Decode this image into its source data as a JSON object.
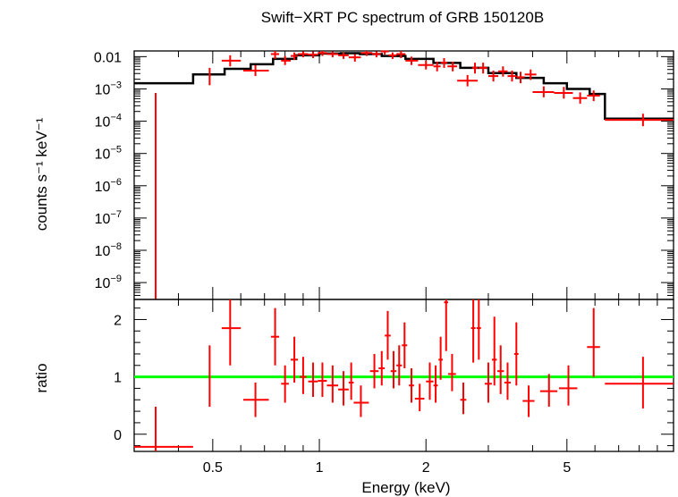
{
  "title": "Swift−XRT PC spectrum of GRB 150120B",
  "colors": {
    "data": "#ff0000",
    "model": "#000000",
    "unity": "#00ff00",
    "frame": "#000000"
  },
  "chart_data": [
    {
      "type": "scatter",
      "panel": "spectrum",
      "title": "Swift−XRT PC spectrum of GRB 150120B",
      "xlabel": "",
      "ylabel": "counts s⁻¹ keV⁻¹",
      "xscale": "log",
      "yscale": "log",
      "xlim": [
        0.3,
        10
      ],
      "ylim": [
        3e-10,
        0.015
      ],
      "yticks": [
        {
          "value": 0.01,
          "label": "0.01"
        },
        {
          "value": 0.001,
          "base": "10",
          "exp": "−3"
        },
        {
          "value": 0.0001,
          "base": "10",
          "exp": "−4"
        },
        {
          "value": 1e-05,
          "base": "10",
          "exp": "−5"
        },
        {
          "value": 1e-06,
          "base": "10",
          "exp": "−6"
        },
        {
          "value": 1e-07,
          "base": "10",
          "exp": "−7"
        },
        {
          "value": 1e-08,
          "base": "10",
          "exp": "−8"
        },
        {
          "value": 1e-09,
          "base": "10",
          "exp": "−9"
        }
      ],
      "series": [
        {
          "style": "crosses",
          "points": [
            {
              "x": 0.345,
              "xlo": 0.345,
              "xhi": 0.345,
              "y": 8e-10,
              "ylo": 3e-10,
              "yhi": 0.00075
            },
            {
              "x": 0.49,
              "xlo": 0.49,
              "xhi": 0.49,
              "y": 0.0025,
              "ylo": 0.0013,
              "yhi": 0.0045
            },
            {
              "x": 0.56,
              "xlo": 0.53,
              "xhi": 0.6,
              "y": 0.0075,
              "ylo": 0.005,
              "yhi": 0.011
            },
            {
              "x": 0.66,
              "xlo": 0.61,
              "xhi": 0.72,
              "y": 0.0037,
              "ylo": 0.0025,
              "yhi": 0.0055
            },
            {
              "x": 0.75,
              "xlo": 0.73,
              "xhi": 0.77,
              "y": 0.012,
              "ylo": 0.0085,
              "yhi": 0.015
            },
            {
              "x": 0.8,
              "xlo": 0.78,
              "xhi": 0.83,
              "y": 0.0075,
              "ylo": 0.0055,
              "yhi": 0.0105
            },
            {
              "x": 0.85,
              "xlo": 0.83,
              "xhi": 0.87,
              "y": 0.0105,
              "ylo": 0.008,
              "yhi": 0.0135
            },
            {
              "x": 0.9,
              "xlo": 0.87,
              "xhi": 0.93,
              "y": 0.012,
              "ylo": 0.0095,
              "yhi": 0.0145
            },
            {
              "x": 0.96,
              "xlo": 0.93,
              "xhi": 0.99,
              "y": 0.0115,
              "ylo": 0.009,
              "yhi": 0.0145
            },
            {
              "x": 1.02,
              "xlo": 0.99,
              "xhi": 1.05,
              "y": 0.013,
              "ylo": 0.0105,
              "yhi": 0.0155
            },
            {
              "x": 1.09,
              "xlo": 1.05,
              "xhi": 1.13,
              "y": 0.012,
              "ylo": 0.0095,
              "yhi": 0.0145
            },
            {
              "x": 1.17,
              "xlo": 1.13,
              "xhi": 1.21,
              "y": 0.011,
              "ylo": 0.0085,
              "yhi": 0.0135
            },
            {
              "x": 1.26,
              "xlo": 1.21,
              "xhi": 1.31,
              "y": 0.0095,
              "ylo": 0.007,
              "yhi": 0.012
            },
            {
              "x": 1.36,
              "xlo": 1.31,
              "xhi": 1.41,
              "y": 0.013,
              "ylo": 0.0105,
              "yhi": 0.0155
            },
            {
              "x": 1.45,
              "xlo": 1.41,
              "xhi": 1.49,
              "y": 0.012,
              "ylo": 0.0095,
              "yhi": 0.0145
            },
            {
              "x": 1.53,
              "xlo": 1.49,
              "xhi": 1.57,
              "y": 0.0145,
              "ylo": 0.0115,
              "yhi": 0.0155
            },
            {
              "x": 1.61,
              "xlo": 1.57,
              "xhi": 1.65,
              "y": 0.011,
              "ylo": 0.0085,
              "yhi": 0.0135
            },
            {
              "x": 1.7,
              "xlo": 1.65,
              "xhi": 1.75,
              "y": 0.012,
              "ylo": 0.009,
              "yhi": 0.015
            },
            {
              "x": 1.82,
              "xlo": 1.75,
              "xhi": 1.9,
              "y": 0.0075,
              "ylo": 0.0055,
              "yhi": 0.01
            },
            {
              "x": 2.0,
              "xlo": 1.9,
              "xhi": 2.1,
              "y": 0.0055,
              "ylo": 0.004,
              "yhi": 0.0075
            },
            {
              "x": 2.15,
              "xlo": 2.1,
              "xhi": 2.2,
              "y": 0.005,
              "ylo": 0.0035,
              "yhi": 0.007
            },
            {
              "x": 2.25,
              "xlo": 2.2,
              "xhi": 2.3,
              "y": 0.0065,
              "ylo": 0.0045,
              "yhi": 0.009
            },
            {
              "x": 2.38,
              "xlo": 2.3,
              "xhi": 2.45,
              "y": 0.005,
              "ylo": 0.0035,
              "yhi": 0.007
            },
            {
              "x": 2.62,
              "xlo": 2.45,
              "xhi": 2.8,
              "y": 0.0018,
              "ylo": 0.0012,
              "yhi": 0.0027
            },
            {
              "x": 2.75,
              "xlo": 2.7,
              "xhi": 2.8,
              "y": 0.0045,
              "ylo": 0.003,
              "yhi": 0.0065
            },
            {
              "x": 2.9,
              "xlo": 2.82,
              "xhi": 2.98,
              "y": 0.0045,
              "ylo": 0.003,
              "yhi": 0.0065
            },
            {
              "x": 3.1,
              "xlo": 3.0,
              "xhi": 3.2,
              "y": 0.0025,
              "ylo": 0.0017,
              "yhi": 0.0037
            },
            {
              "x": 3.3,
              "xlo": 3.2,
              "xhi": 3.4,
              "y": 0.0035,
              "ylo": 0.0024,
              "yhi": 0.005
            },
            {
              "x": 3.5,
              "xlo": 3.4,
              "xhi": 3.6,
              "y": 0.0025,
              "ylo": 0.0017,
              "yhi": 0.0037
            },
            {
              "x": 3.7,
              "xlo": 3.6,
              "xhi": 3.8,
              "y": 0.0023,
              "ylo": 0.0015,
              "yhi": 0.0034
            },
            {
              "x": 3.95,
              "xlo": 3.8,
              "xhi": 4.1,
              "y": 0.0028,
              "ylo": 0.0019,
              "yhi": 0.004
            },
            {
              "x": 4.3,
              "xlo": 4.0,
              "xhi": 4.6,
              "y": 0.0008,
              "ylo": 0.00055,
              "yhi": 0.0012
            },
            {
              "x": 4.9,
              "xlo": 4.6,
              "xhi": 5.2,
              "y": 0.00075,
              "ylo": 0.0005,
              "yhi": 0.00115
            },
            {
              "x": 5.45,
              "xlo": 5.2,
              "xhi": 5.7,
              "y": 0.00052,
              "ylo": 0.00035,
              "yhi": 0.00078
            },
            {
              "x": 5.95,
              "xlo": 5.7,
              "xhi": 6.2,
              "y": 0.00062,
              "ylo": 0.00042,
              "yhi": 0.0009
            },
            {
              "x": 8.2,
              "xlo": 6.4,
              "xhi": 10.0,
              "y": 0.00011,
              "ylo": 7e-05,
              "yhi": 0.00017
            }
          ]
        }
      ],
      "model": {
        "edges": [
          0.3,
          0.44,
          0.54,
          0.64,
          0.74,
          0.86,
          1.0,
          1.15,
          1.3,
          1.5,
          1.75,
          2.1,
          2.5,
          3.0,
          3.6,
          4.3,
          5.0,
          5.8,
          6.4,
          10.0
        ],
        "values": [
          0.0015,
          0.0028,
          0.0042,
          0.0058,
          0.0085,
          0.011,
          0.0125,
          0.0128,
          0.012,
          0.0105,
          0.0085,
          0.0064,
          0.0045,
          0.0031,
          0.0022,
          0.0015,
          0.001,
          0.0007,
          0.00012
        ]
      }
    },
    {
      "type": "scatter",
      "panel": "ratio",
      "xlabel": "Energy (keV)",
      "ylabel": "ratio",
      "xscale": "log",
      "xlim": [
        0.3,
        10
      ],
      "ylim": [
        -0.3,
        2.35
      ],
      "yticks": [
        0,
        1,
        2
      ],
      "xticks": [
        {
          "value": 0.5,
          "label": "0.5"
        },
        {
          "value": 1,
          "label": "1"
        },
        {
          "value": 2,
          "label": "2"
        },
        {
          "value": 5,
          "label": "5"
        }
      ],
      "reference_line": 1,
      "series": [
        {
          "style": "crosses",
          "points": [
            {
              "x": 0.345,
              "xlo": 0.3,
              "xhi": 0.44,
              "y": -0.22,
              "ylo": -0.3,
              "yhi": 0.48
            },
            {
              "x": 0.49,
              "xlo": 0.49,
              "xhi": 0.49,
              "y": 1.0,
              "ylo": 0.48,
              "yhi": 1.55
            },
            {
              "x": 0.56,
              "xlo": 0.53,
              "xhi": 0.6,
              "y": 1.85,
              "ylo": 1.2,
              "yhi": 2.35
            },
            {
              "x": 0.66,
              "xlo": 0.61,
              "xhi": 0.72,
              "y": 0.6,
              "ylo": 0.3,
              "yhi": 0.9
            },
            {
              "x": 0.75,
              "xlo": 0.73,
              "xhi": 0.77,
              "y": 1.7,
              "ylo": 1.2,
              "yhi": 2.2
            },
            {
              "x": 0.8,
              "xlo": 0.78,
              "xhi": 0.82,
              "y": 0.88,
              "ylo": 0.55,
              "yhi": 1.2
            },
            {
              "x": 0.85,
              "xlo": 0.83,
              "xhi": 0.87,
              "y": 1.3,
              "ylo": 0.9,
              "yhi": 1.7
            },
            {
              "x": 0.9,
              "xlo": 0.88,
              "xhi": 0.92,
              "y": 1.0,
              "ylo": 0.7,
              "yhi": 1.35
            },
            {
              "x": 0.96,
              "xlo": 0.93,
              "xhi": 0.99,
              "y": 0.92,
              "ylo": 0.65,
              "yhi": 1.25
            },
            {
              "x": 1.02,
              "xlo": 0.99,
              "xhi": 1.05,
              "y": 0.93,
              "ylo": 0.65,
              "yhi": 1.25
            },
            {
              "x": 1.09,
              "xlo": 1.05,
              "xhi": 1.13,
              "y": 0.85,
              "ylo": 0.55,
              "yhi": 1.2
            },
            {
              "x": 1.17,
              "xlo": 1.13,
              "xhi": 1.21,
              "y": 0.78,
              "ylo": 0.5,
              "yhi": 1.1
            },
            {
              "x": 1.23,
              "xlo": 1.21,
              "xhi": 1.25,
              "y": 0.9,
              "ylo": 0.6,
              "yhi": 1.25
            },
            {
              "x": 1.31,
              "xlo": 1.25,
              "xhi": 1.38,
              "y": 0.55,
              "ylo": 0.3,
              "yhi": 0.85
            },
            {
              "x": 1.43,
              "xlo": 1.39,
              "xhi": 1.47,
              "y": 1.1,
              "ylo": 0.8,
              "yhi": 1.4
            },
            {
              "x": 1.5,
              "xlo": 1.47,
              "xhi": 1.53,
              "y": 1.15,
              "ylo": 0.85,
              "yhi": 1.45
            },
            {
              "x": 1.56,
              "xlo": 1.53,
              "xhi": 1.59,
              "y": 1.72,
              "ylo": 1.3,
              "yhi": 2.15
            },
            {
              "x": 1.62,
              "xlo": 1.59,
              "xhi": 1.65,
              "y": 1.1,
              "ylo": 0.8,
              "yhi": 1.45
            },
            {
              "x": 1.68,
              "xlo": 1.65,
              "xhi": 1.71,
              "y": 1.2,
              "ylo": 0.85,
              "yhi": 1.55
            },
            {
              "x": 1.74,
              "xlo": 1.71,
              "xhi": 1.77,
              "y": 1.55,
              "ylo": 1.15,
              "yhi": 1.95
            },
            {
              "x": 1.82,
              "xlo": 1.79,
              "xhi": 1.85,
              "y": 0.85,
              "ylo": 0.55,
              "yhi": 1.15
            },
            {
              "x": 1.92,
              "xlo": 1.86,
              "xhi": 1.98,
              "y": 0.62,
              "ylo": 0.4,
              "yhi": 0.88
            },
            {
              "x": 2.05,
              "xlo": 2.0,
              "xhi": 2.1,
              "y": 0.92,
              "ylo": 0.6,
              "yhi": 1.25
            },
            {
              "x": 2.13,
              "xlo": 2.1,
              "xhi": 2.16,
              "y": 0.85,
              "ylo": 0.55,
              "yhi": 1.2
            },
            {
              "x": 2.2,
              "xlo": 2.17,
              "xhi": 2.23,
              "y": 1.3,
              "ylo": 0.95,
              "yhi": 1.7
            },
            {
              "x": 2.28,
              "xlo": 2.25,
              "xhi": 2.31,
              "y": 2.3,
              "ylo": 1.45,
              "yhi": 2.35
            },
            {
              "x": 2.37,
              "xlo": 2.31,
              "xhi": 2.43,
              "y": 1.05,
              "ylo": 0.75,
              "yhi": 1.4
            },
            {
              "x": 2.55,
              "xlo": 2.5,
              "xhi": 2.6,
              "y": 0.6,
              "ylo": 0.35,
              "yhi": 0.9
            },
            {
              "x": 2.72,
              "xlo": 2.68,
              "xhi": 2.76,
              "y": 1.85,
              "ylo": 1.25,
              "yhi": 2.35
            },
            {
              "x": 2.82,
              "xlo": 2.78,
              "xhi": 2.86,
              "y": 1.85,
              "ylo": 1.3,
              "yhi": 2.35
            },
            {
              "x": 3.0,
              "xlo": 2.93,
              "xhi": 3.07,
              "y": 0.88,
              "ylo": 0.55,
              "yhi": 1.25
            },
            {
              "x": 3.12,
              "xlo": 3.07,
              "xhi": 3.17,
              "y": 1.3,
              "ylo": 0.85,
              "yhi": 2.05
            },
            {
              "x": 3.25,
              "xlo": 3.18,
              "xhi": 3.32,
              "y": 1.1,
              "ylo": 0.7,
              "yhi": 1.55
            },
            {
              "x": 3.4,
              "xlo": 3.33,
              "xhi": 3.47,
              "y": 0.9,
              "ylo": 0.6,
              "yhi": 1.25
            },
            {
              "x": 3.6,
              "xlo": 3.55,
              "xhi": 3.65,
              "y": 1.4,
              "ylo": 0.85,
              "yhi": 1.95
            },
            {
              "x": 3.9,
              "xlo": 3.75,
              "xhi": 4.05,
              "y": 0.58,
              "ylo": 0.3,
              "yhi": 0.85
            },
            {
              "x": 4.45,
              "xlo": 4.2,
              "xhi": 4.7,
              "y": 0.75,
              "ylo": 0.48,
              "yhi": 1.05
            },
            {
              "x": 5.05,
              "xlo": 4.75,
              "xhi": 5.35,
              "y": 0.8,
              "ylo": 0.5,
              "yhi": 1.2
            },
            {
              "x": 5.95,
              "xlo": 5.7,
              "xhi": 6.2,
              "y": 1.52,
              "ylo": 1.0,
              "yhi": 2.2
            },
            {
              "x": 8.2,
              "xlo": 6.4,
              "xhi": 10.0,
              "y": 0.88,
              "ylo": 0.45,
              "yhi": 1.35
            }
          ]
        }
      ]
    }
  ]
}
